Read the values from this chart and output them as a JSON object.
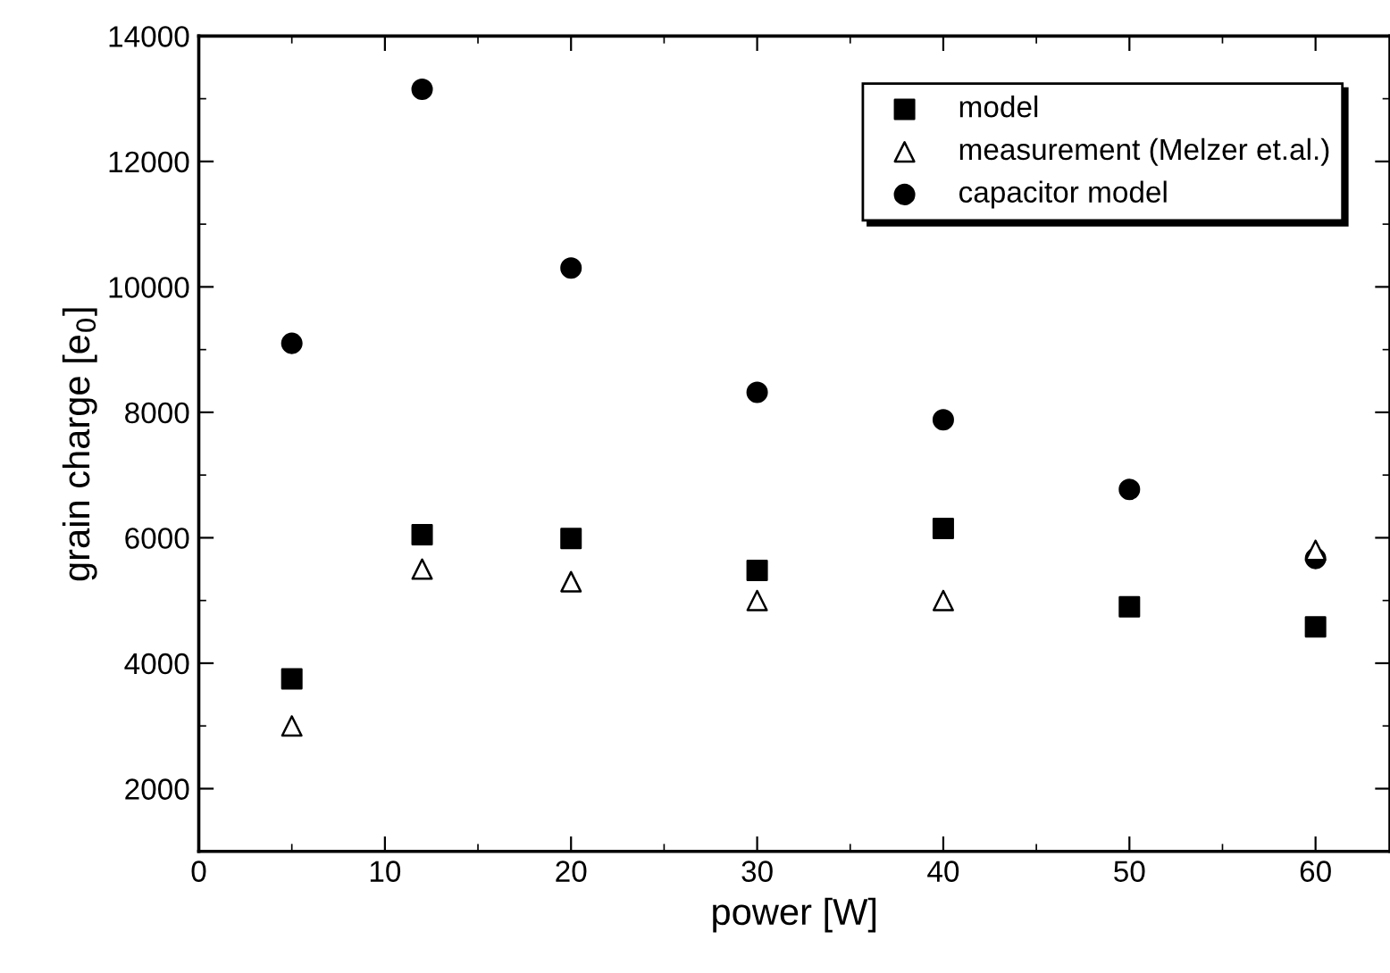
{
  "chart_data": {
    "type": "scatter",
    "xlabel": "power [W]",
    "ylabel": "grain charge [e$_{0}$]",
    "xlim": [
      0,
      64
    ],
    "xticks": [
      0,
      10,
      20,
      30,
      40,
      50,
      60
    ],
    "ylim": [
      1000,
      14000
    ],
    "yticks": [
      2000,
      4000,
      6000,
      8000,
      10000,
      12000,
      14000
    ],
    "grid": false,
    "legend": "top right",
    "series": [
      {
        "name": "model",
        "color": "#000000",
        "marker": "square",
        "x": [
          5,
          12,
          20,
          30,
          40,
          50,
          60
        ],
        "values": [
          3750,
          6050,
          5990,
          5480,
          6150,
          4900,
          4580
        ]
      },
      {
        "name": "measurement (Melzer et.al.)",
        "color": "#000000",
        "marker": "triangle",
        "x": [
          5,
          12,
          20,
          30,
          40,
          60
        ],
        "values": [
          3000,
          5500,
          5300,
          5000,
          5000,
          5800
        ]
      },
      {
        "name": "capacitor model",
        "color": "#000000",
        "marker": "circle",
        "x": [
          5,
          12,
          20,
          30,
          40,
          50,
          60
        ],
        "values": [
          9100,
          13150,
          10300,
          8320,
          7880,
          6770,
          5670
        ]
      }
    ]
  }
}
